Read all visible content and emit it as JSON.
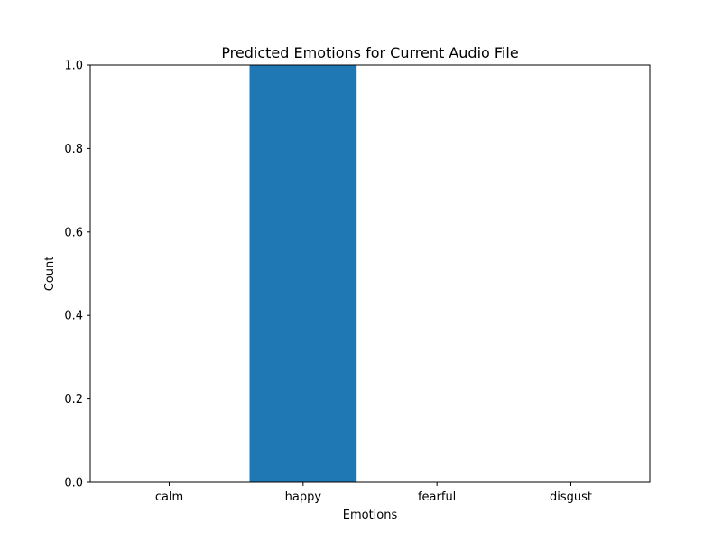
{
  "chart_data": {
    "type": "bar",
    "title": "Predicted Emotions for Current Audio File",
    "xlabel": "Emotions",
    "ylabel": "Count",
    "categories": [
      "calm",
      "happy",
      "fearful",
      "disgust"
    ],
    "values": [
      0,
      1,
      0,
      0
    ],
    "ylim": [
      0,
      1.0
    ],
    "yticks": [
      "0.0",
      "0.2",
      "0.4",
      "0.6",
      "0.8",
      "1.0"
    ],
    "grid": false,
    "bar_color": "#1f77b4"
  }
}
